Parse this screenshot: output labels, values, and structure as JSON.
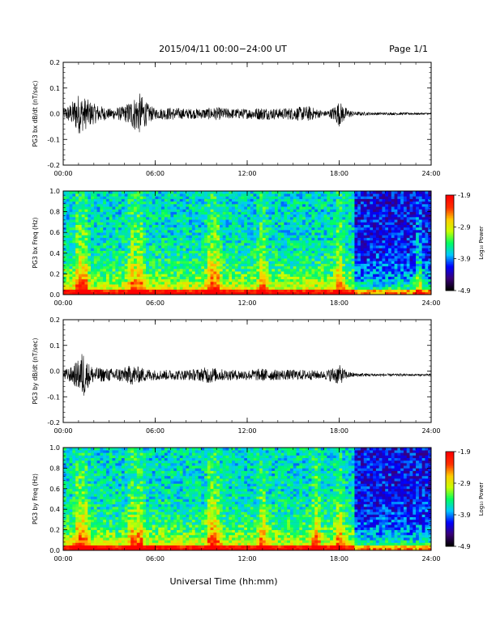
{
  "header": {
    "title": "2015/04/11  00:00−24:00 UT",
    "page": "Page 1/1"
  },
  "footer": {
    "xlabel": "Universal Time (hh:mm)"
  },
  "colorbar": {
    "label": "Log₁₀ Power",
    "ticks": [
      "-1.9",
      "-2.9",
      "-3.9",
      "-4.9"
    ],
    "colors": [
      "#000000",
      "#3a0078",
      "#0000ff",
      "#00c8ff",
      "#00ff60",
      "#c8ff00",
      "#ffcc00",
      "#ff3000",
      "#ff0000"
    ]
  },
  "chart_data": [
    {
      "type": "line",
      "ylabel": "PG3 bx dB/dt (nT/sec)",
      "xlim": [
        0,
        24
      ],
      "ylim": [
        -0.2,
        0.2
      ],
      "xticks": [
        "00:00",
        "06:00",
        "12:00",
        "18:00",
        "24:00"
      ],
      "yticks": [
        "0.2",
        "0.1",
        "0.0",
        "-0.1",
        "-0.2"
      ],
      "offset": 0.0,
      "envelope": {
        "hours": [
          0,
          0.5,
          1,
          1.5,
          2,
          3,
          4,
          4.5,
          5,
          5.5,
          6,
          7,
          8,
          9,
          10,
          11,
          12,
          13,
          14,
          15,
          16,
          16.5,
          17,
          17.5,
          18,
          18.5,
          19,
          20,
          21,
          22,
          23,
          24
        ],
        "amplitude": [
          0.02,
          0.04,
          0.08,
          0.06,
          0.04,
          0.02,
          0.03,
          0.06,
          0.08,
          0.04,
          0.02,
          0.025,
          0.02,
          0.02,
          0.025,
          0.02,
          0.02,
          0.025,
          0.02,
          0.025,
          0.03,
          0.02,
          0.01,
          0.02,
          0.05,
          0.02,
          0.008,
          0.006,
          0.005,
          0.005,
          0.004,
          0.004
        ]
      }
    },
    {
      "type": "heatmap",
      "ylabel": "PG3 bx Freq (Hz)",
      "xlim": [
        0,
        24
      ],
      "ylim": [
        0,
        1.0
      ],
      "xticks": [
        "00:00",
        "06:00",
        "12:00",
        "18:00",
        "24:00"
      ],
      "yticks": [
        "1.0",
        "0.8",
        "0.6",
        "0.4",
        "0.2",
        "0.0"
      ],
      "zlim": [
        -4.9,
        -1.9
      ],
      "bursts_hours": [
        1.0,
        1.4,
        4.5,
        5.0,
        9.6,
        10.0,
        13.0,
        18.0,
        23.2
      ],
      "quiet_after_hour": 19.0
    },
    {
      "type": "line",
      "ylabel": "PG3 by dB/dt (nT/sec)",
      "xlim": [
        0,
        24
      ],
      "ylim": [
        -0.2,
        0.2
      ],
      "xticks": [
        "00:00",
        "06:00",
        "12:00",
        "18:00",
        "24:00"
      ],
      "yticks": [
        "0.2",
        "0.1",
        "0.0",
        "-0.1",
        "-0.2"
      ],
      "offset": -0.015,
      "envelope": {
        "hours": [
          0,
          0.5,
          1,
          1.3,
          1.6,
          2,
          3,
          4,
          4.5,
          5,
          6,
          7,
          8,
          9,
          9.5,
          10,
          11,
          12,
          13,
          14,
          15,
          16,
          17,
          18,
          18.5,
          19,
          20,
          21,
          22,
          23,
          24
        ],
        "amplitude": [
          0.02,
          0.03,
          0.06,
          0.1,
          0.05,
          0.03,
          0.025,
          0.03,
          0.04,
          0.03,
          0.02,
          0.02,
          0.02,
          0.025,
          0.035,
          0.025,
          0.02,
          0.02,
          0.025,
          0.02,
          0.02,
          0.02,
          0.015,
          0.04,
          0.015,
          0.008,
          0.006,
          0.005,
          0.005,
          0.004,
          0.004
        ]
      }
    },
    {
      "type": "heatmap",
      "ylabel": "PG3 by Freq (Hz)",
      "xlim": [
        0,
        24
      ],
      "ylim": [
        0,
        1.0
      ],
      "xticks": [
        "00:00",
        "06:00",
        "12:00",
        "18:00",
        "24:00"
      ],
      "yticks": [
        "1.0",
        "0.8",
        "0.6",
        "0.4",
        "0.2",
        "0.0"
      ],
      "zlim": [
        -4.9,
        -1.9
      ],
      "bursts_hours": [
        1.0,
        1.4,
        4.5,
        5.0,
        9.6,
        10.0,
        13.0,
        16.5,
        18.0
      ],
      "quiet_after_hour": 19.0
    }
  ]
}
